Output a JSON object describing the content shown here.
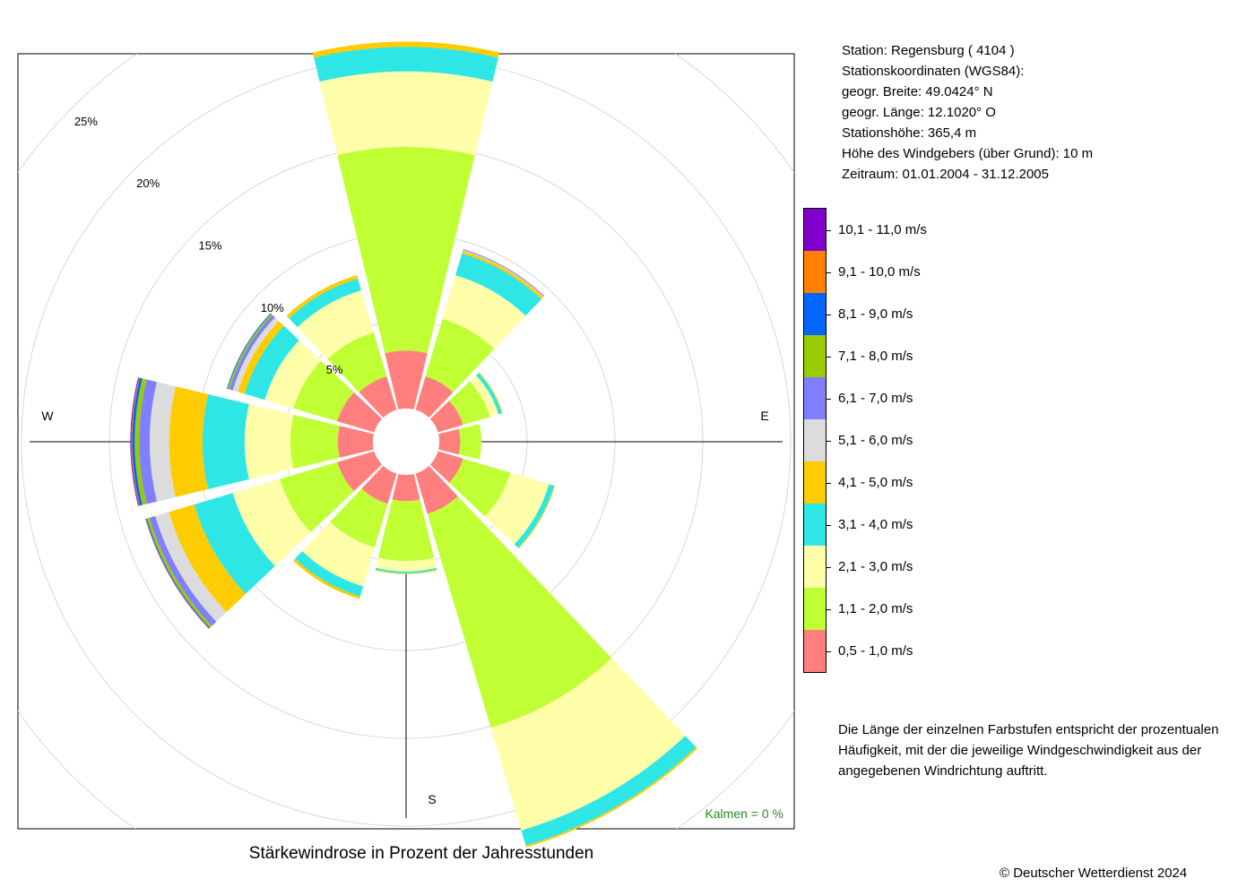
{
  "title": "Stärkewindrose in Prozent der Jahresstunden",
  "station_info": [
    "Station:  Regensburg  ( 4104 )",
    "Stationskoordinaten (WGS84):",
    "geogr. Breite: 49.0424° N",
    "geogr. Länge: 12.1020° O",
    "Stationshöhe: 365,4 m",
    "Höhe des Windgebers (über Grund): 10 m",
    "Zeitraum: 01.01.2004 - 31.12.2005"
  ],
  "calm_text": "Kalmen  =  0 %",
  "note": "Die Länge der einzelnen Farbstufen entspricht der prozentualen Häufigkeit, mit der die jeweilige Windgeschwindigkeit aus der angegebenen Windrichtung auftritt.",
  "copyright": "© Deutscher Wetterdienst  2024",
  "colors": {
    "calm_text": "#228b22",
    "grid": "#d9d9d9",
    "axis": "#000000"
  },
  "chart_data": {
    "type": "wind-rose",
    "title": "Stärkewindrose in Prozent der Jahresstunden",
    "direction_labels": {
      "W": "W",
      "E": "E",
      "S": "S"
    },
    "radial_ticks": [
      5,
      10,
      15,
      20,
      25
    ],
    "radial_tick_labels": [
      "5%",
      "10%",
      "15%",
      "20%",
      "25%"
    ],
    "radial_max": 25,
    "directions_deg": [
      0,
      30,
      60,
      90,
      120,
      150,
      180,
      210,
      240,
      270,
      300,
      330
    ],
    "speed_classes": [
      {
        "label": "0,5 - 1,0 m/s",
        "color": "#ff7f7f"
      },
      {
        "label": "1,1 - 2,0 m/s",
        "color": "#bfff33"
      },
      {
        "label": "2,1 - 3,0 m/s",
        "color": "#ffffaa"
      },
      {
        "label": "3,1 - 4,0 m/s",
        "color": "#2ee6e6"
      },
      {
        "label": "4,1 - 5,0 m/s",
        "color": "#ffcc00"
      },
      {
        "label": "5,1 - 6,0 m/s",
        "color": "#dcdcdc"
      },
      {
        "label": "6,1 - 7,0 m/s",
        "color": "#8080ff"
      },
      {
        "label": "7,1 - 8,0 m/s",
        "color": "#99cc00"
      },
      {
        "label": "8,1 - 9,0 m/s",
        "color": "#0066ff"
      },
      {
        "label": "9,1 - 10,0 m/s",
        "color": "#ff8000"
      },
      {
        "label": "10,1 - 11,0 m/s",
        "color": "#8000cc"
      }
    ],
    "series": [
      {
        "direction": 0,
        "values": [
          3.3,
          11.6,
          4.3,
          1.4,
          0.3,
          0,
          0,
          0,
          0,
          0,
          0
        ]
      },
      {
        "direction": 30,
        "values": [
          2.0,
          3.4,
          2.6,
          1.3,
          0.15,
          0.05,
          0.05,
          0,
          0,
          0,
          0
        ]
      },
      {
        "direction": 60,
        "values": [
          1.5,
          1.6,
          0.5,
          0.2,
          0.05,
          0,
          0,
          0,
          0,
          0,
          0
        ]
      },
      {
        "direction": 90,
        "values": [
          1.2,
          1.2,
          0,
          0,
          0,
          0,
          0,
          0,
          0,
          0,
          0
        ]
      },
      {
        "direction": 120,
        "values": [
          1.5,
          2.8,
          2.3,
          0.3,
          0.05,
          0,
          0,
          0,
          0,
          0,
          0
        ]
      },
      {
        "direction": 150,
        "values": [
          2.4,
          12.7,
          6.1,
          0.9,
          0.1,
          0,
          0,
          0,
          0,
          0,
          0
        ]
      },
      {
        "direction": 180,
        "values": [
          1.5,
          3.4,
          0.6,
          0.1,
          0.05,
          0,
          0,
          0,
          0,
          0,
          0
        ]
      },
      {
        "direction": 210,
        "values": [
          1.8,
          2.6,
          2.3,
          0.6,
          0.15,
          0,
          0,
          0,
          0,
          0,
          0
        ]
      },
      {
        "direction": 240,
        "values": [
          2.2,
          3.4,
          2.8,
          2.3,
          1.5,
          0.8,
          0.35,
          0.15,
          0.05,
          0.02,
          0.02
        ]
      },
      {
        "direction": 270,
        "values": [
          2.0,
          2.7,
          2.6,
          2.4,
          1.9,
          1.1,
          0.6,
          0.25,
          0.15,
          0.05,
          0.05
        ]
      },
      {
        "direction": 300,
        "values": [
          2.2,
          2.6,
          1.7,
          1.2,
          0.4,
          0.3,
          0.2,
          0.1,
          0.05,
          0,
          0
        ]
      },
      {
        "direction": 330,
        "values": [
          2.0,
          2.6,
          2.5,
          0.7,
          0.2,
          0,
          0,
          0,
          0,
          0,
          0
        ]
      }
    ],
    "legend_placement": "right"
  }
}
